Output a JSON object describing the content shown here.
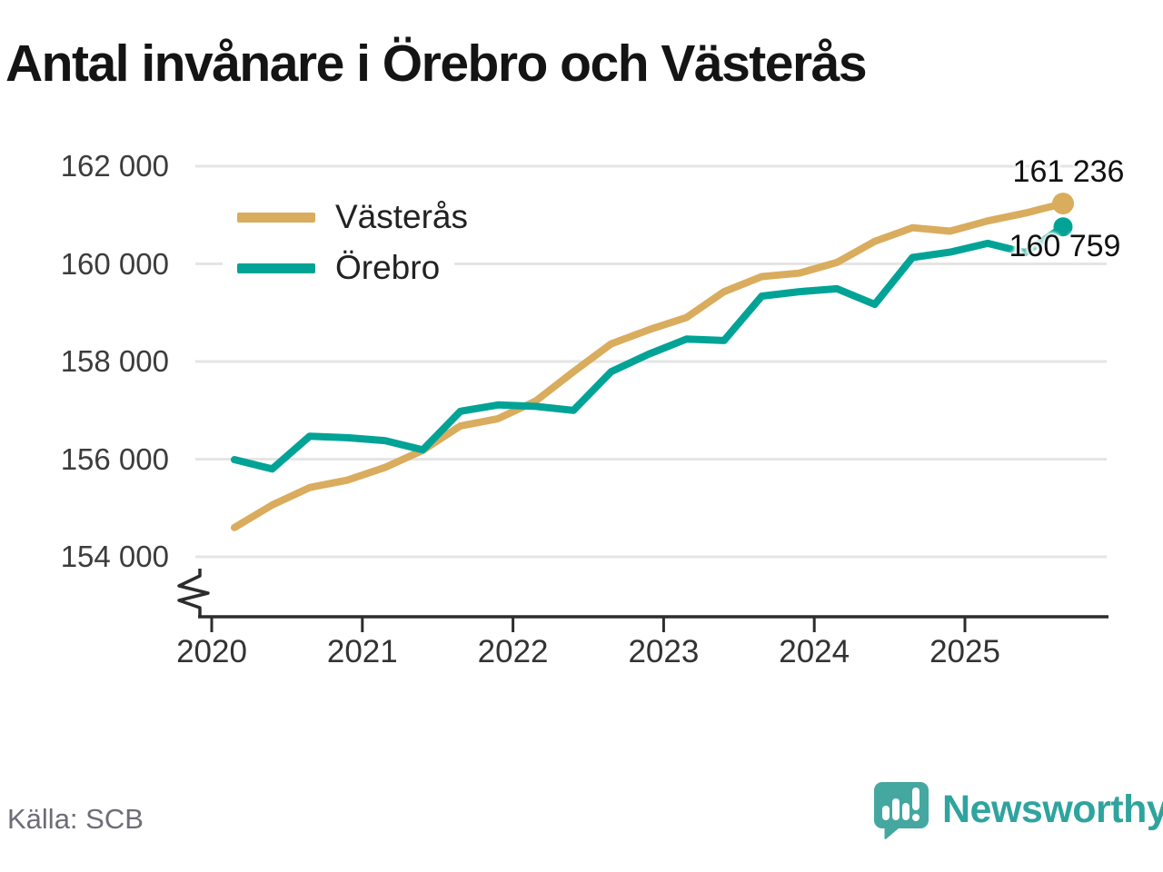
{
  "title": "Antal invånare i Örebro och Västerås",
  "source": "Källa: SCB",
  "brand": {
    "name": "Newsworthy",
    "badge_color": "#44a8a0",
    "text_color": "#2fa49e"
  },
  "colors": {
    "grid": "#e5e5e5",
    "axis": "#2d2d2d",
    "tick_text": "#333333",
    "title_text": "#141414"
  },
  "legend": [
    {
      "label": "Västerås"
    },
    {
      "label": "Örebro"
    }
  ],
  "end_labels": {
    "vasteras": "161 236",
    "orebro": "160 759"
  },
  "y_axis": {
    "ticks": [
      {
        "label": "162 000",
        "value": 162000
      },
      {
        "label": "160 000",
        "value": 160000
      },
      {
        "label": "158 000",
        "value": 158000
      },
      {
        "label": "156 000",
        "value": 156000
      },
      {
        "label": "154 000",
        "value": 154000
      }
    ],
    "axis_break": true
  },
  "x_axis": {
    "ticks": [
      "2020",
      "2021",
      "2022",
      "2023",
      "2024",
      "2025"
    ]
  },
  "chart_data": {
    "type": "line",
    "title": "Antal invånare i Örebro och Västerås",
    "xlabel": "",
    "ylabel": "",
    "ylim": [
      154000,
      162000
    ],
    "grid": "horizontal",
    "legend_position": "top-left",
    "x": [
      "2020 Q1",
      "2020 Q2",
      "2020 Q3",
      "2020 Q4",
      "2021 Q1",
      "2021 Q2",
      "2021 Q3",
      "2021 Q4",
      "2022 Q1",
      "2022 Q2",
      "2022 Q3",
      "2022 Q4",
      "2023 Q1",
      "2023 Q2",
      "2023 Q3",
      "2023 Q4",
      "2024 Q1",
      "2024 Q2",
      "2024 Q3",
      "2024 Q4",
      "2025 Q1",
      "2025 Q2",
      "2025 Q3"
    ],
    "series": [
      {
        "id": "vasteras",
        "name": "Västerås",
        "color": "#d9ac5e",
        "end_value_label": "161 236",
        "values": [
          154600,
          155060,
          155420,
          155570,
          155830,
          156180,
          156680,
          156830,
          157190,
          157790,
          158360,
          158650,
          158900,
          159430,
          159740,
          159810,
          160030,
          160460,
          160740,
          160670,
          160880,
          161040,
          161236
        ]
      },
      {
        "id": "orebro",
        "name": "Örebro",
        "color": "#00a396",
        "end_value_label": "160 759",
        "values": [
          155990,
          155800,
          156470,
          156440,
          156380,
          156190,
          156980,
          157110,
          157080,
          157000,
          157790,
          158150,
          158460,
          158430,
          159340,
          159430,
          159490,
          159170,
          160130,
          160240,
          160420,
          160230,
          160759
        ]
      }
    ]
  }
}
